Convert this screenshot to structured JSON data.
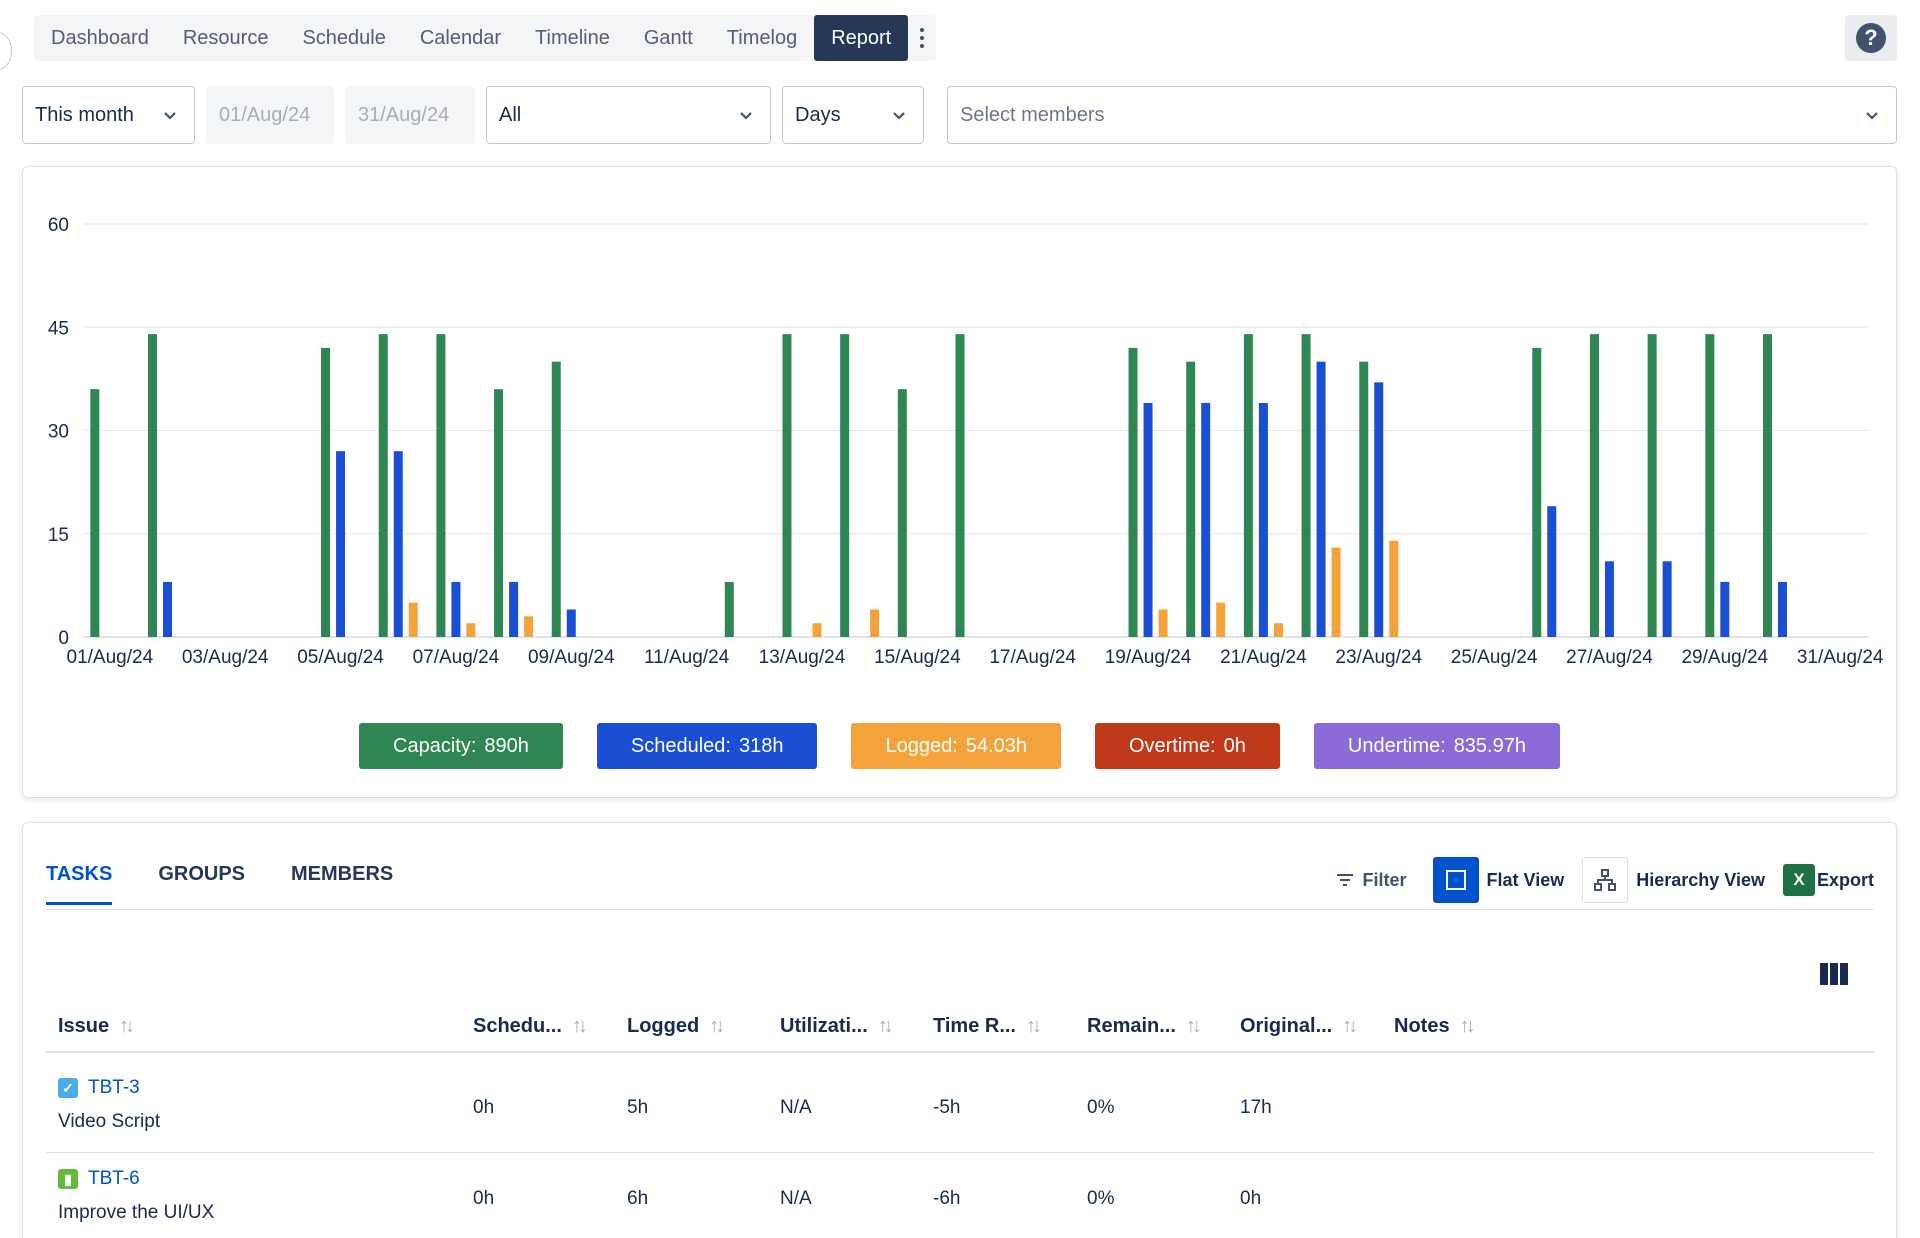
{
  "nav": {
    "tabs": [
      "Dashboard",
      "Resource",
      "Schedule",
      "Calendar",
      "Timeline",
      "Gantt",
      "Timelog",
      "Report"
    ],
    "active": "Report",
    "help_icon": "question-mark-icon",
    "help_label": "?"
  },
  "filters": {
    "period": "This month",
    "start_date": "01/Aug/24",
    "end_date": "31/Aug/24",
    "scope": "All",
    "granularity": "Days",
    "members_placeholder": "Select members"
  },
  "summary": [
    {
      "label": "Capacity:",
      "value": "890h",
      "color": "#2e8653"
    },
    {
      "label": "Scheduled:",
      "value": "318h",
      "color": "#1a4fd3"
    },
    {
      "label": "Logged:",
      "value": "54.03h",
      "color": "#f3a33a"
    },
    {
      "label": "Overtime:",
      "value": "0h",
      "color": "#c0391b"
    },
    {
      "label": "Undertime:",
      "value": "835.97h",
      "color": "#8a6bd8"
    }
  ],
  "chart_data": {
    "type": "bar",
    "y_ticks": [
      0,
      15,
      30,
      45,
      60
    ],
    "ylim": [
      0,
      60
    ],
    "x_tick_labels": [
      "01/Aug/24",
      "03/Aug/24",
      "05/Aug/24",
      "07/Aug/24",
      "09/Aug/24",
      "11/Aug/24",
      "13/Aug/24",
      "15/Aug/24",
      "17/Aug/24",
      "19/Aug/24",
      "21/Aug/24",
      "23/Aug/24",
      "25/Aug/24",
      "27/Aug/24",
      "29/Aug/24",
      "31/Aug/24"
    ],
    "categories": [
      "01/Aug/24",
      "02/Aug/24",
      "03/Aug/24",
      "04/Aug/24",
      "05/Aug/24",
      "06/Aug/24",
      "07/Aug/24",
      "08/Aug/24",
      "09/Aug/24",
      "10/Aug/24",
      "11/Aug/24",
      "12/Aug/24",
      "13/Aug/24",
      "14/Aug/24",
      "15/Aug/24",
      "16/Aug/24",
      "17/Aug/24",
      "18/Aug/24",
      "19/Aug/24",
      "20/Aug/24",
      "21/Aug/24",
      "22/Aug/24",
      "23/Aug/24",
      "24/Aug/24",
      "25/Aug/24",
      "26/Aug/24",
      "27/Aug/24",
      "28/Aug/24",
      "29/Aug/24",
      "30/Aug/24",
      "31/Aug/24"
    ],
    "series": [
      {
        "name": "Capacity",
        "color": "#2e8653",
        "values": [
          36,
          44,
          0,
          0,
          42,
          44,
          44,
          36,
          40,
          0,
          0,
          8,
          44,
          44,
          36,
          44,
          0,
          0,
          42,
          40,
          44,
          44,
          40,
          0,
          0,
          42,
          44,
          44,
          44,
          44,
          0
        ]
      },
      {
        "name": "Scheduled",
        "color": "#1a4fd3",
        "values": [
          0,
          8,
          0,
          0,
          27,
          27,
          8,
          8,
          4,
          0,
          0,
          0,
          0,
          0,
          0,
          0,
          0,
          0,
          34,
          34,
          34,
          40,
          37,
          0,
          0,
          19,
          11,
          11,
          8,
          8,
          0
        ]
      },
      {
        "name": "Logged",
        "color": "#f3a33a",
        "values": [
          0,
          0,
          0,
          0,
          0,
          5,
          2,
          3,
          0,
          0,
          0,
          0,
          2,
          4,
          0,
          0,
          0,
          0,
          4,
          5,
          2,
          13,
          14,
          0,
          0,
          0,
          0,
          0,
          0,
          0,
          0
        ]
      }
    ],
    "grid": true
  },
  "report": {
    "tabs": [
      "TASKS",
      "GROUPS",
      "MEMBERS"
    ],
    "active_tab": "TASKS",
    "tools": {
      "filter": "Filter",
      "flat_view": "Flat View",
      "hierarchy_view": "Hierarchy View",
      "export": "Export",
      "export_icon_letter": "X"
    },
    "columns": [
      "Issue",
      "Schedu...",
      "Logged",
      "Utilizati...",
      "Time R...",
      "Remain...",
      "Original...",
      "Notes"
    ],
    "rows": [
      {
        "key": "TBT-3",
        "type": "task",
        "summary": "Video Script",
        "scheduled": "0h",
        "logged": "5h",
        "utilization": "N/A",
        "time_remaining": "-5h",
        "remaining": "0%",
        "original": "17h",
        "notes": ""
      },
      {
        "key": "TBT-6",
        "type": "story",
        "summary": "Improve the UI/UX",
        "scheduled": "0h",
        "logged": "6h",
        "utilization": "N/A",
        "time_remaining": "-6h",
        "remaining": "0%",
        "original": "0h",
        "notes": ""
      }
    ]
  }
}
